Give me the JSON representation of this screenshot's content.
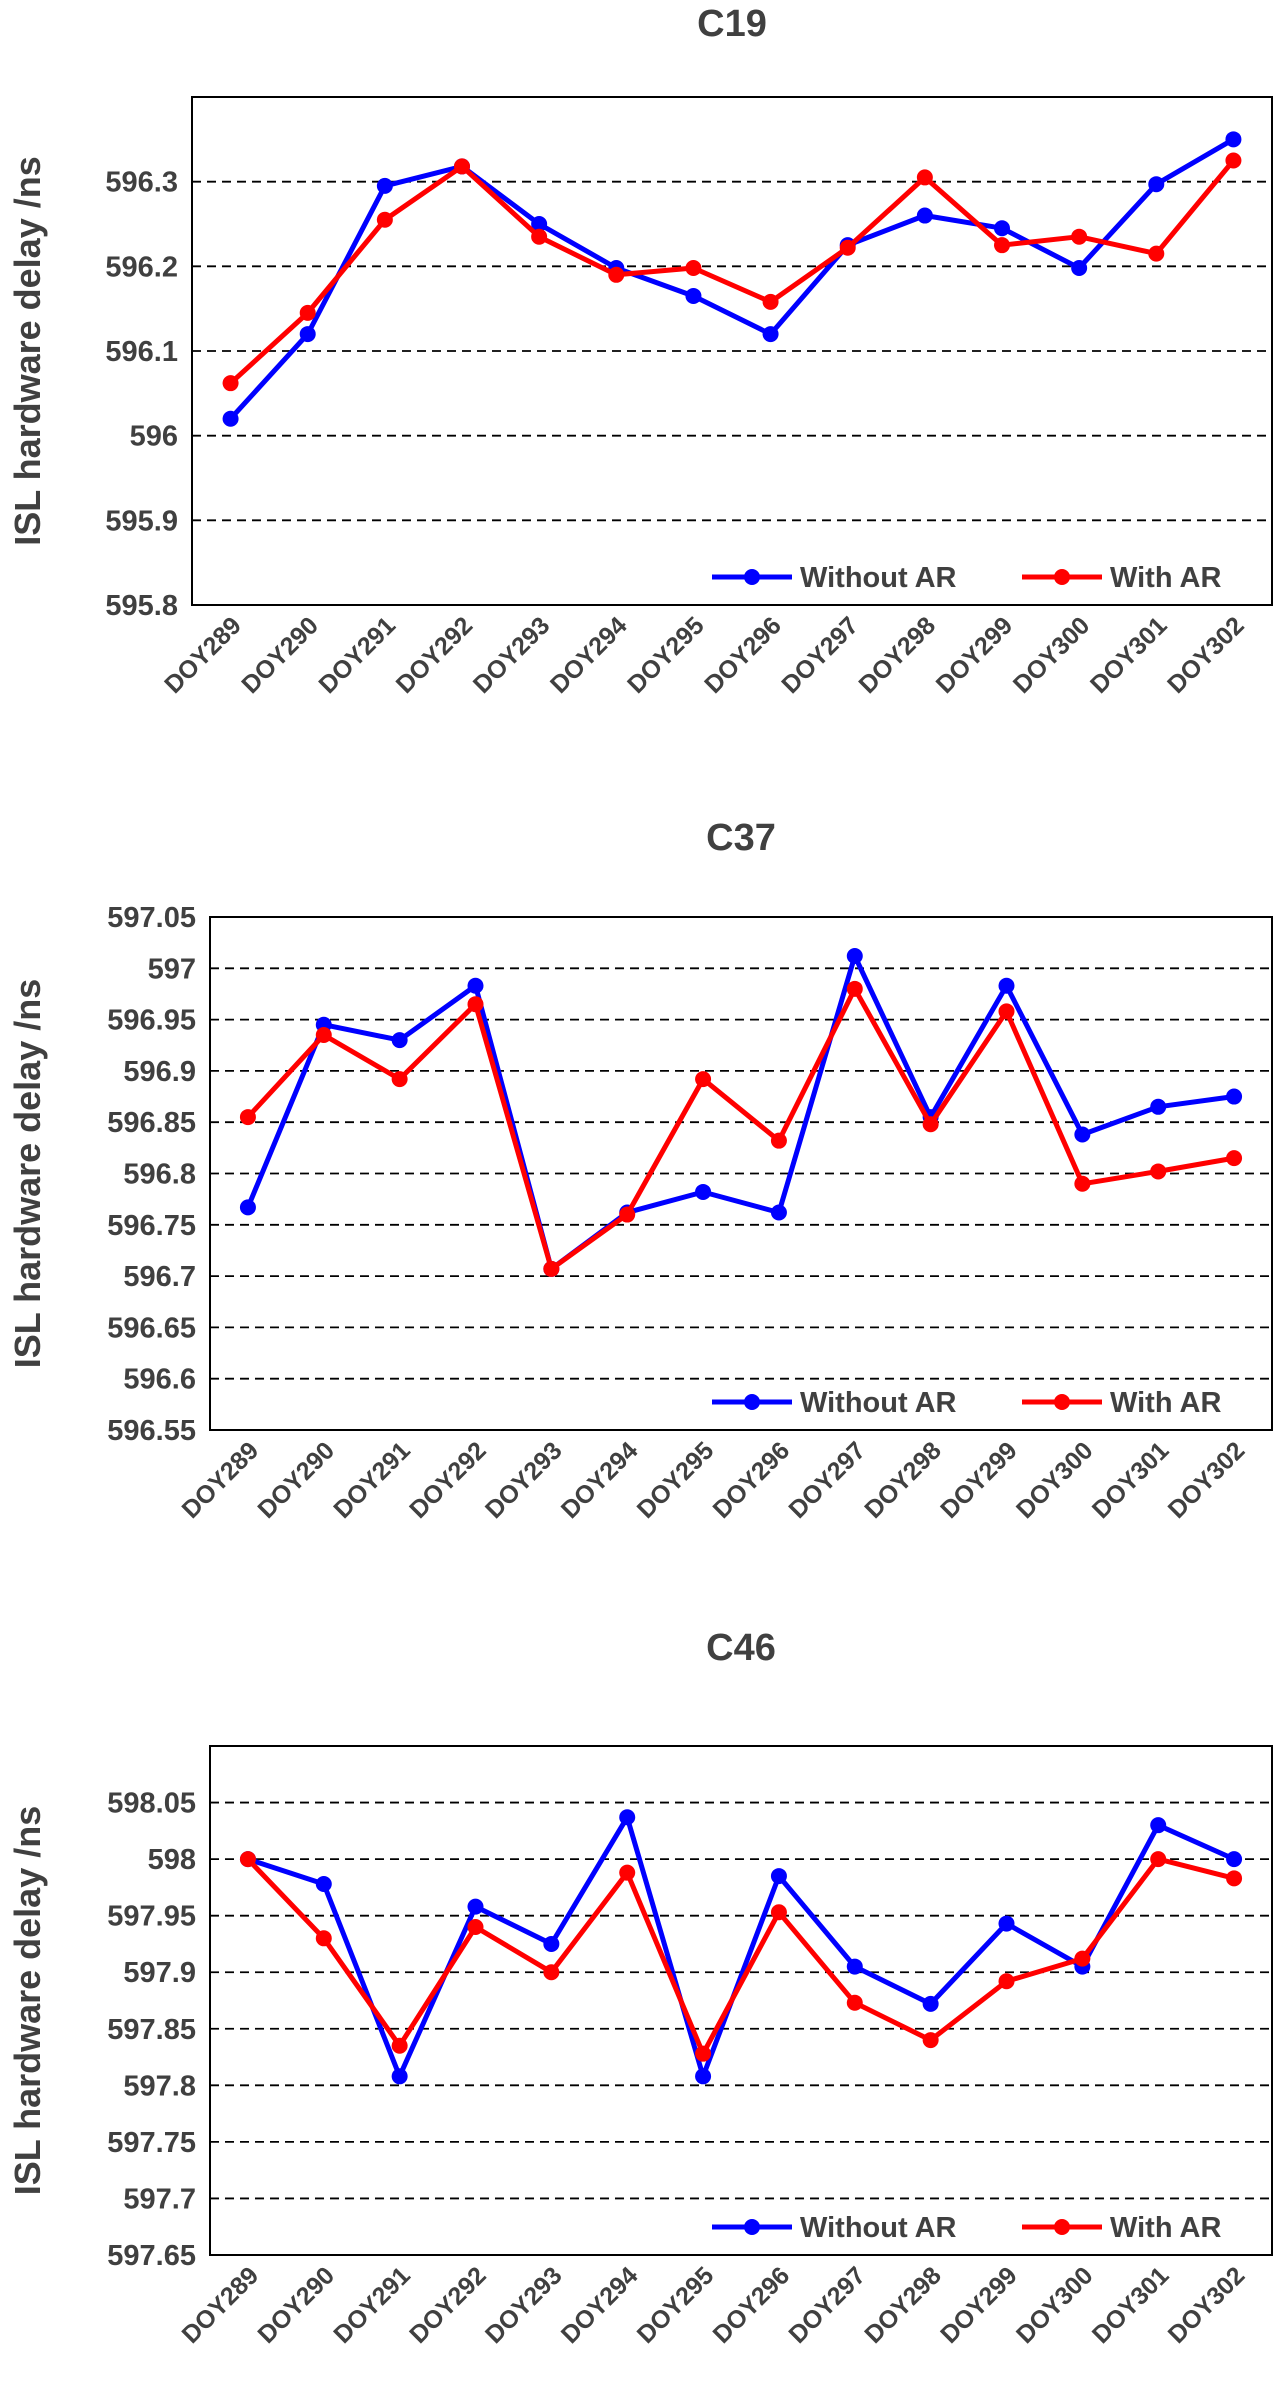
{
  "chart_data": [
    {
      "type": "line",
      "title": "C19",
      "ylabel": "ISL hardware delay /ns",
      "xlabel": "",
      "ylim": [
        595.8,
        596.4
      ],
      "yticks": [
        "595.8",
        "595.9",
        "596",
        "596.1",
        "596.2",
        "596.3"
      ],
      "categories": [
        "DOY289",
        "DOY290",
        "DOY291",
        "DOY292",
        "DOY293",
        "DOY294",
        "DOY295",
        "DOY296",
        "DOY297",
        "DOY298",
        "DOY299",
        "DOY300",
        "DOY301",
        "DOY302"
      ],
      "grid": true,
      "legend": "bottom-right",
      "series": [
        {
          "name": "Without AR",
          "color": "#0000ff",
          "values": [
            596.02,
            596.12,
            596.295,
            596.318,
            596.25,
            596.198,
            596.165,
            596.12,
            596.225,
            596.26,
            596.245,
            596.198,
            596.297,
            596.35
          ]
        },
        {
          "name": "With AR",
          "color": "#ff0000",
          "values": [
            596.062,
            596.145,
            596.255,
            596.318,
            596.235,
            596.19,
            596.198,
            596.158,
            596.222,
            596.305,
            596.225,
            596.235,
            596.215,
            596.325
          ]
        }
      ]
    },
    {
      "type": "line",
      "title": "C37",
      "ylabel": "ISL hardware delay /ns",
      "xlabel": "",
      "ylim": [
        596.55,
        597.05
      ],
      "yticks": [
        "596.55",
        "596.6",
        "596.65",
        "596.7",
        "596.75",
        "596.8",
        "596.85",
        "596.9",
        "596.95",
        "597",
        "597.05"
      ],
      "categories": [
        "DOY289",
        "DOY290",
        "DOY291",
        "DOY292",
        "DOY293",
        "DOY294",
        "DOY295",
        "DOY296",
        "DOY297",
        "DOY298",
        "DOY299",
        "DOY300",
        "DOY301",
        "DOY302"
      ],
      "grid": true,
      "legend": "bottom-right",
      "series": [
        {
          "name": "Without AR",
          "color": "#0000ff",
          "values": [
            596.767,
            596.945,
            596.93,
            596.983,
            596.707,
            596.762,
            596.782,
            596.762,
            597.012,
            596.855,
            596.983,
            596.838,
            596.865,
            596.875
          ]
        },
        {
          "name": "With AR",
          "color": "#ff0000",
          "values": [
            596.855,
            596.935,
            596.892,
            596.965,
            596.707,
            596.76,
            596.892,
            596.832,
            596.98,
            596.848,
            596.958,
            596.79,
            596.802,
            596.815
          ]
        }
      ]
    },
    {
      "type": "line",
      "title": "C46",
      "ylabel": "ISL hardware delay /ns",
      "xlabel": "",
      "ylim": [
        597.65,
        598.1
      ],
      "yticks": [
        "597.65",
        "597.7",
        "597.75",
        "597.8",
        "597.85",
        "597.9",
        "597.95",
        "598",
        "598.05"
      ],
      "categories": [
        "DOY289",
        "DOY290",
        "DOY291",
        "DOY292",
        "DOY293",
        "DOY294",
        "DOY295",
        "DOY296",
        "DOY297",
        "DOY298",
        "DOY299",
        "DOY300",
        "DOY301",
        "DOY302"
      ],
      "grid": true,
      "legend": "bottom-right",
      "series": [
        {
          "name": "Without AR",
          "color": "#0000ff",
          "values": [
            598.0,
            597.978,
            597.808,
            597.958,
            597.925,
            598.037,
            597.808,
            597.985,
            597.905,
            597.872,
            597.943,
            597.905,
            598.03,
            598.0
          ]
        },
        {
          "name": "With AR",
          "color": "#ff0000",
          "values": [
            598.0,
            597.93,
            597.835,
            597.94,
            597.9,
            597.988,
            597.828,
            597.953,
            597.873,
            597.84,
            597.892,
            597.912,
            598.0,
            597.983
          ]
        }
      ]
    }
  ]
}
